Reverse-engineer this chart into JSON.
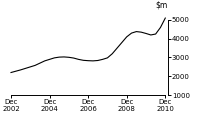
{
  "title": "",
  "ylim": [
    1000,
    5500
  ],
  "yticks": [
    1000,
    2000,
    3000,
    4000,
    5000
  ],
  "xlabel": "",
  "background_color": "#ffffff",
  "line_color": "#000000",
  "line_width": 0.8,
  "xtick_labels": [
    "Dec\n2002",
    "Dec\n2004",
    "Dec\n2006",
    "Dec\n2008",
    "Dec\n2010"
  ],
  "xtick_positions": [
    0,
    8,
    16,
    24,
    32
  ],
  "x": [
    0,
    1,
    2,
    3,
    4,
    5,
    6,
    7,
    8,
    9,
    10,
    11,
    12,
    13,
    14,
    15,
    16,
    17,
    18,
    19,
    20,
    21,
    22,
    23,
    24,
    25,
    26,
    27,
    28,
    29,
    30,
    31,
    32
  ],
  "y": [
    2200,
    2270,
    2340,
    2420,
    2500,
    2580,
    2700,
    2820,
    2900,
    2980,
    3020,
    3030,
    3010,
    2970,
    2900,
    2850,
    2830,
    2820,
    2840,
    2900,
    2980,
    3200,
    3500,
    3800,
    4100,
    4300,
    4380,
    4350,
    4280,
    4200,
    4250,
    4600,
    5100
  ]
}
